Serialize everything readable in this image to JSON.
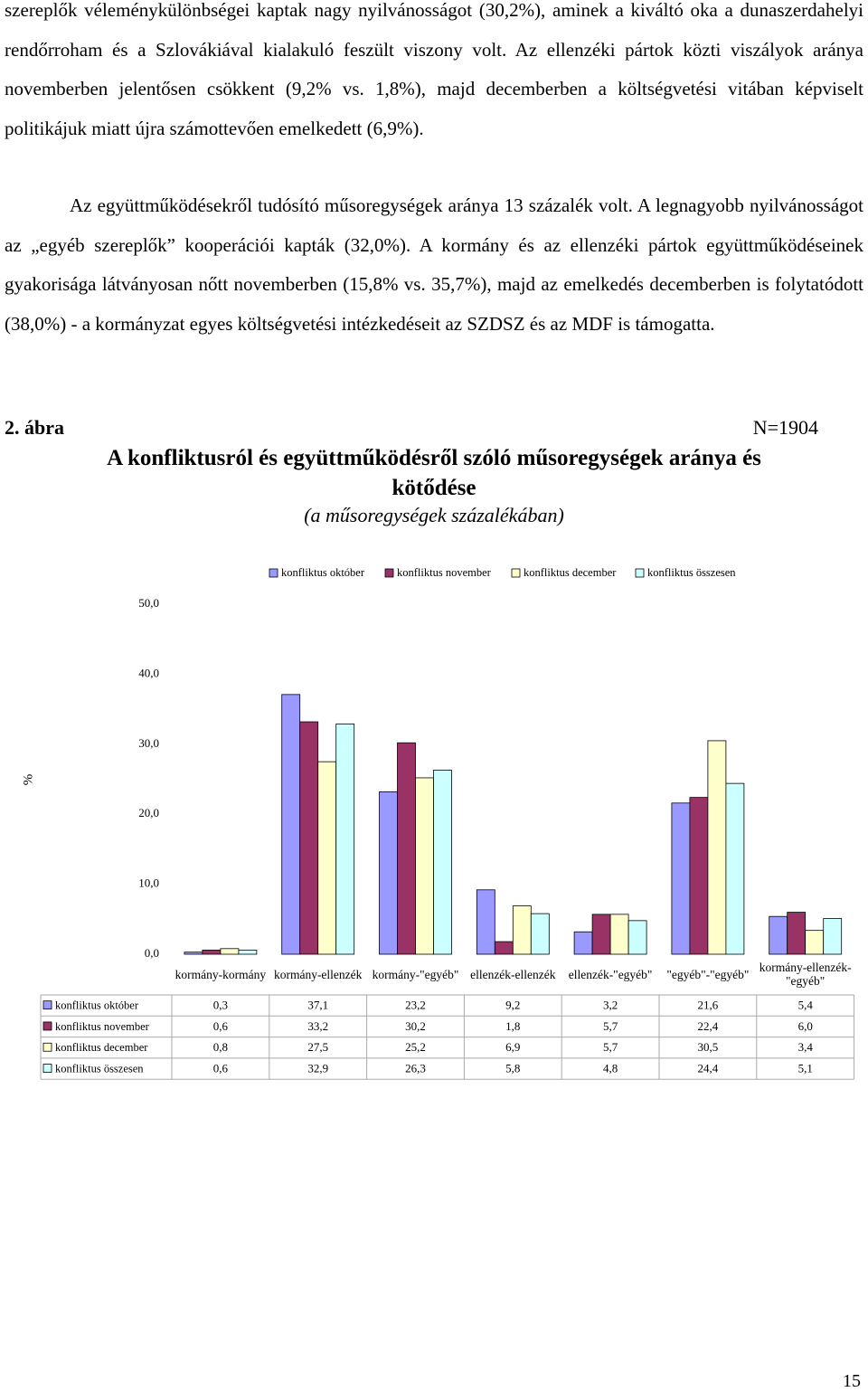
{
  "paragraphs": [
    "szereplők véleménykülönbségei kaptak nagy nyilvánosságot (30,2%), aminek a kiváltó oka a dunaszerdahelyi rendőrroham és a Szlovákiával kialakuló feszült viszony volt. Az ellenzéki pártok közti viszályok aránya novemberben jelentősen csökkent (9,2% vs. 1,8%), majd decemberben a költségvetési vitában képviselt politikájuk miatt újra számottevően emelkedett (6,9%).",
    "Az együttműködésekről tudósító műsoregységek aránya 13 százalék volt. A legnagyobb nyilvánosságot az „egyéb szereplők” kooperációi kapták (32,0%). A kormány és az ellenzéki pártok együttműködéseinek gyakorisága látványosan nőtt novemberben (15,8% vs. 35,7%), majd az emelkedés decemberben is folytatódott (38,0%) - a kormányzat egyes költségvetési intézkedéseit az SZDSZ és az MDF is támogatta."
  ],
  "figure": {
    "label": "2. ábra",
    "n": "N=1904"
  },
  "chart_data": {
    "type": "bar",
    "title": "A konfliktusról és együttműködésről szóló műsoregységek aránya és kötődése",
    "subtitle": "(a műsoregységek százalékában)",
    "y_label": "%",
    "categories": [
      "kormány-kormány",
      "kormány-ellenzék",
      "kormány-\"egyéb\"",
      "ellenzék-ellenzék",
      "ellenzék-\"egyéb\"",
      "\"egyéb\"-\"egyéb\"",
      "kormány-ellenzék-\"egyéb\""
    ],
    "series": [
      {
        "name": "konfliktus október",
        "color": "#9999ff",
        "values": [
          0.3,
          37.1,
          23.2,
          9.2,
          3.2,
          21.6,
          5.4
        ],
        "value_labels": [
          "0,3",
          "37,1",
          "23,2",
          "9,2",
          "3,2",
          "21,6",
          "5,4"
        ]
      },
      {
        "name": "konfliktus november",
        "color": "#993366",
        "values": [
          0.6,
          33.2,
          30.2,
          1.8,
          5.7,
          22.4,
          6.0
        ],
        "value_labels": [
          "0,6",
          "33,2",
          "30,2",
          "1,8",
          "5,7",
          "22,4",
          "6,0"
        ]
      },
      {
        "name": "konfliktus december",
        "color": "#ffffcc",
        "values": [
          0.8,
          27.5,
          25.2,
          6.9,
          5.7,
          30.5,
          3.4
        ],
        "value_labels": [
          "0,8",
          "27,5",
          "25,2",
          "6,9",
          "5,7",
          "30,5",
          "3,4"
        ]
      },
      {
        "name": "konfliktus összesen",
        "color": "#ccffff",
        "values": [
          0.6,
          32.9,
          26.3,
          5.8,
          4.8,
          24.4,
          5.1
        ],
        "value_labels": [
          "0,6",
          "32,9",
          "26,3",
          "5,8",
          "4,8",
          "24,4",
          "5,1"
        ]
      }
    ],
    "ylim": [
      0,
      50
    ],
    "yticks": [
      {
        "value": 0,
        "label": "0,0"
      },
      {
        "value": 10,
        "label": "10,0"
      },
      {
        "value": 20,
        "label": "20,0"
      },
      {
        "value": 30,
        "label": "30,0"
      },
      {
        "value": 40,
        "label": "40,0"
      },
      {
        "value": 50,
        "label": "50,0"
      }
    ],
    "legend": "top",
    "data_table": true
  },
  "page_number": "15"
}
